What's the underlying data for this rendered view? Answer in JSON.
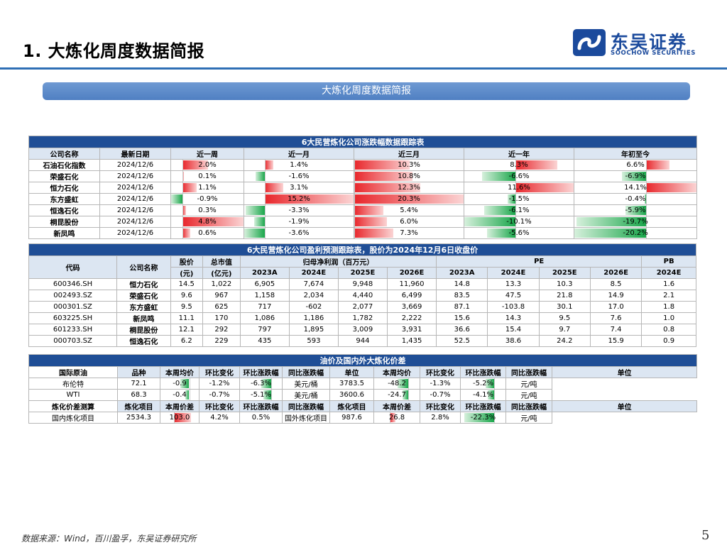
{
  "header": {
    "title": "1. 大炼化周度数据简报"
  },
  "logo": {
    "cn": "东吴证券",
    "en": "SOOCHOW SECURITIES",
    "color": "#1b4a9c"
  },
  "banner": {
    "text": "大炼化周度数据简报"
  },
  "t1": {
    "title": "6大民营炼化公司涨跌幅数据跟踪表",
    "headers": [
      "公司名称",
      "最新日期",
      "近一周",
      "近一月",
      "近三月",
      "近一年",
      "年初至今"
    ],
    "rows": [
      {
        "name": "石油石化指数",
        "date": "2024/12/6",
        "w": "2.0%",
        "m": "1.4%",
        "q": "10.3%",
        "y": "8.3%",
        "ytd": "6.6%"
      },
      {
        "name": "荣盛石化",
        "date": "2024/12/6",
        "w": "0.1%",
        "m": "-1.6%",
        "q": "10.8%",
        "y": "-6.6%",
        "ytd": "-6.9%"
      },
      {
        "name": "恒力石化",
        "date": "2024/12/6",
        "w": "1.1%",
        "m": "3.1%",
        "q": "12.3%",
        "y": "11.6%",
        "ytd": "14.1%"
      },
      {
        "name": "东方盛虹",
        "date": "2024/12/6",
        "w": "-0.9%",
        "m": "15.2%",
        "q": "20.3%",
        "y": "-1.5%",
        "ytd": "-0.4%"
      },
      {
        "name": "恒逸石化",
        "date": "2024/12/6",
        "w": "0.3%",
        "m": "-3.3%",
        "q": "5.4%",
        "y": "-6.1%",
        "ytd": "-5.9%"
      },
      {
        "name": "桐昆股份",
        "date": "2024/12/6",
        "w": "4.8%",
        "m": "-1.9%",
        "q": "6.0%",
        "y": "-10.1%",
        "ytd": "-19.7%"
      },
      {
        "name": "新凤鸣",
        "date": "2024/12/6",
        "w": "0.6%",
        "m": "-3.6%",
        "q": "7.3%",
        "y": "-5.6%",
        "ytd": "-20.2%"
      }
    ]
  },
  "t2": {
    "title": "6大民营炼化公司盈利预测跟踪表，股价为2024年12月6日收盘价",
    "h_code": "代码",
    "h_name": "公司名称",
    "h_price": "股价",
    "h_price_unit": "(元)",
    "h_mcap": "总市值",
    "h_mcap_unit": "(亿元)",
    "h_profit": "归母净利润（百万元）",
    "h_pe": "PE",
    "h_pb": "PB",
    "years": [
      "2023A",
      "2024E",
      "2025E",
      "2026E"
    ],
    "pb_year": "2024E",
    "rows": [
      {
        "code": "600346.SH",
        "name": "恒力石化",
        "price": "14.5",
        "mcap": "1,022",
        "p1": "6,905",
        "p2": "7,674",
        "p3": "9,948",
        "p4": "11,960",
        "pe1": "14.8",
        "pe2": "13.3",
        "pe3": "10.3",
        "pe4": "8.5",
        "pb": "1.6"
      },
      {
        "code": "002493.SZ",
        "name": "荣盛石化",
        "price": "9.6",
        "mcap": "967",
        "p1": "1,158",
        "p2": "2,034",
        "p3": "4,440",
        "p4": "6,499",
        "pe1": "83.5",
        "pe2": "47.5",
        "pe3": "21.8",
        "pe4": "14.9",
        "pb": "2.1"
      },
      {
        "code": "000301.SZ",
        "name": "东方盛虹",
        "price": "9.5",
        "mcap": "625",
        "p1": "717",
        "p2": "-602",
        "p3": "2,077",
        "p4": "3,669",
        "pe1": "87.1",
        "pe2": "-103.8",
        "pe3": "30.1",
        "pe4": "17.0",
        "pb": "1.8"
      },
      {
        "code": "603225.SH",
        "name": "新凤鸣",
        "price": "11.1",
        "mcap": "170",
        "p1": "1,086",
        "p2": "1,186",
        "p3": "1,782",
        "p4": "2,222",
        "pe1": "15.6",
        "pe2": "14.3",
        "pe3": "9.5",
        "pe4": "7.6",
        "pb": "1.0"
      },
      {
        "code": "601233.SH",
        "name": "桐昆股份",
        "price": "12.1",
        "mcap": "292",
        "p1": "797",
        "p2": "1,895",
        "p3": "3,009",
        "p4": "3,931",
        "pe1": "36.6",
        "pe2": "15.4",
        "pe3": "9.7",
        "pe4": "7.4",
        "pb": "0.8"
      },
      {
        "code": "000703.SZ",
        "name": "恒逸石化",
        "price": "6.2",
        "mcap": "229",
        "p1": "435",
        "p2": "593",
        "p3": "944",
        "p4": "1,435",
        "pe1": "52.5",
        "pe2": "38.6",
        "pe3": "24.2",
        "pe4": "15.9",
        "pb": "0.9"
      }
    ]
  },
  "t3": {
    "title": "油价及国内外大炼化价差",
    "crude_label": "国际原油",
    "crude_headers": [
      "品种",
      "本周均价",
      "环比变化",
      "环比涨跌幅",
      "同比涨跌幅",
      "单位",
      "本周均价",
      "环比变化",
      "环比涨跌幅",
      "同比涨跌幅",
      "单位"
    ],
    "crude_rows": [
      {
        "name": "布伦特",
        "avg": "72.1",
        "chg": "-0.9",
        "chg_pct": "-1.2%",
        "yoy": "-6.3%",
        "unit": "美元/桶",
        "avg2": "3783.5",
        "chg2": "-48.2",
        "chg_pct2": "-1.3%",
        "yoy2": "-5.2%",
        "unit2": "元/吨"
      },
      {
        "name": "WTI",
        "avg": "68.3",
        "chg": "-0.4",
        "chg_pct": "-0.7%",
        "yoy": "-5.1%",
        "unit": "美元/桶",
        "avg2": "3600.6",
        "chg2": "-24.7",
        "chg_pct2": "-0.7%",
        "yoy2": "-4.1%",
        "unit2": "元/吨"
      }
    ],
    "spread_label": "炼化价差测算",
    "spread_headers": [
      "炼化项目",
      "本周价差",
      "环比变化",
      "环比涨跌幅",
      "同比涨跌幅",
      "炼化项目",
      "本周价差",
      "环比变化",
      "环比涨跌幅",
      "同比涨跌幅",
      "单位"
    ],
    "spread_row": {
      "name": "国内炼化项目",
      "val": "2534.3",
      "chg": "103.0",
      "chg_pct": "4.2%",
      "yoy": "0.5%",
      "name2": "国外炼化项目",
      "val2": "987.6",
      "chg2": "26.8",
      "chg_pct2": "2.8%",
      "yoy2": "-22.3%",
      "unit": "元/吨"
    }
  },
  "bars_t1": {
    "w": [
      2.0,
      0.1,
      1.1,
      -0.9,
      0.3,
      4.8,
      0.6
    ],
    "m": [
      1.4,
      -1.6,
      3.1,
      15.2,
      -3.3,
      -1.9,
      -3.6
    ],
    "q": [
      10.3,
      10.8,
      12.3,
      20.3,
      5.4,
      6.0,
      7.3
    ],
    "y": [
      8.3,
      -6.6,
      11.6,
      -1.5,
      -6.1,
      -10.1,
      -5.6
    ],
    "ytd": [
      6.6,
      -6.9,
      14.1,
      -0.4,
      -5.9,
      -19.7,
      -20.2
    ]
  },
  "bars_t3": {
    "crude_chg": [
      -0.9,
      -0.4
    ],
    "crude_yoy": [
      -6.3,
      -5.1
    ],
    "crude_chg2": [
      -48.2,
      -24.7
    ],
    "crude_yoy2": [
      -5.2,
      -4.1
    ],
    "spread_chg": [
      103.0
    ],
    "spread_chg2": [
      26.8
    ],
    "spread_yoy2": [
      -22.3
    ]
  },
  "colors": {
    "positive": "#e8262b",
    "negative": "#19a64a",
    "section": "#1f4e96",
    "header": "#dce6f2",
    "rule": "#2f6fb5"
  },
  "footer": {
    "source": "数据来源：Wind，百川盈孚，东吴证券研究所",
    "page": "5"
  }
}
